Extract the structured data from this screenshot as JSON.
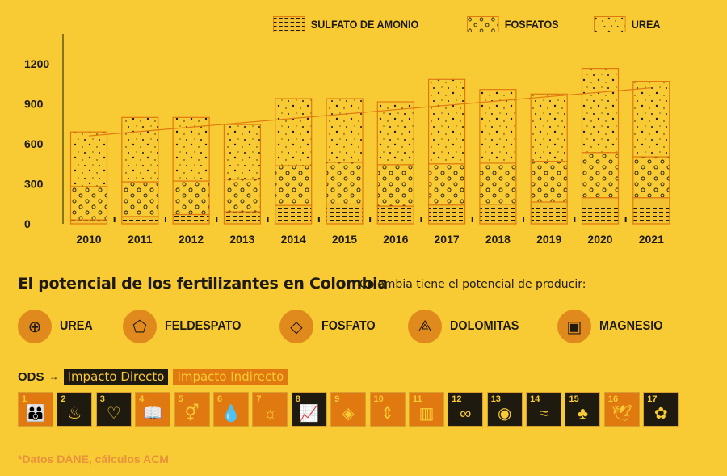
{
  "chart_data": {
    "type": "bar",
    "stacked": true,
    "categories": [
      "2010",
      "2011",
      "2012",
      "2013",
      "2014",
      "2015",
      "2016",
      "2017",
      "2018",
      "2019",
      "2020",
      "2021"
    ],
    "series": [
      {
        "name": "SULFATO DE AMONIO",
        "values": [
          30,
          55,
          70,
          91,
          139,
          149,
          133,
          141,
          147,
          164,
          196,
          196
        ]
      },
      {
        "name": "FOSFATOS",
        "values": [
          250,
          260,
          251,
          244,
          297,
          312,
          311,
          309,
          308,
          305,
          339,
          307
        ]
      },
      {
        "name": "UREA",
        "values": [
          410,
          483,
          477,
          410,
          503,
          478,
          471,
          633,
          553,
          505,
          631,
          566
        ]
      }
    ],
    "trendline": {
      "start": [
        2010,
        660
      ],
      "end": [
        2021,
        1020
      ]
    },
    "yticks": [
      "0",
      "300",
      "600",
      "900",
      "1200"
    ],
    "ylim": [
      0,
      1200
    ],
    "legend_position": "top-right",
    "colors": {
      "background": "#F8CB35",
      "outline": "#E07A10",
      "ink": "#1E1A0F"
    }
  },
  "section": {
    "title": "El potencial de los fertilizantes en Colombia",
    "subtitle": "Colombia tiene el potencial de producir:",
    "minerals": [
      {
        "label": "UREA",
        "icon": "bag-icon"
      },
      {
        "label": "FELDESPATO",
        "icon": "crystal-icon"
      },
      {
        "label": "FOSFATO",
        "icon": "phosphate-icon"
      },
      {
        "label": "DOLOMITAS",
        "icon": "crystals-icon"
      },
      {
        "label": "MAGNESIO",
        "icon": "container-icon"
      }
    ]
  },
  "ods": {
    "label": "ODS",
    "arrow": "→",
    "direct": "Impacto Directo",
    "indirect": "Impacto Indirecto",
    "goals": [
      {
        "n": "1",
        "icon": "👪",
        "direct": false
      },
      {
        "n": "2",
        "icon": "♨",
        "direct": true
      },
      {
        "n": "3",
        "icon": "♡",
        "direct": true
      },
      {
        "n": "4",
        "icon": "📖",
        "direct": false
      },
      {
        "n": "5",
        "icon": "⚥",
        "direct": false
      },
      {
        "n": "6",
        "icon": "💧",
        "direct": false
      },
      {
        "n": "7",
        "icon": "☼",
        "direct": false
      },
      {
        "n": "8",
        "icon": "📈",
        "direct": true
      },
      {
        "n": "9",
        "icon": "◈",
        "direct": false
      },
      {
        "n": "10",
        "icon": "⇕",
        "direct": false
      },
      {
        "n": "11",
        "icon": "▥",
        "direct": false
      },
      {
        "n": "12",
        "icon": "∞",
        "direct": true
      },
      {
        "n": "13",
        "icon": "◉",
        "direct": true
      },
      {
        "n": "14",
        "icon": "≈",
        "direct": true
      },
      {
        "n": "15",
        "icon": "♣",
        "direct": true
      },
      {
        "n": "16",
        "icon": "🕊",
        "direct": false
      },
      {
        "n": "17",
        "icon": "✿",
        "direct": true
      }
    ]
  },
  "footer": "*Datos DANE, cálculos ACM"
}
